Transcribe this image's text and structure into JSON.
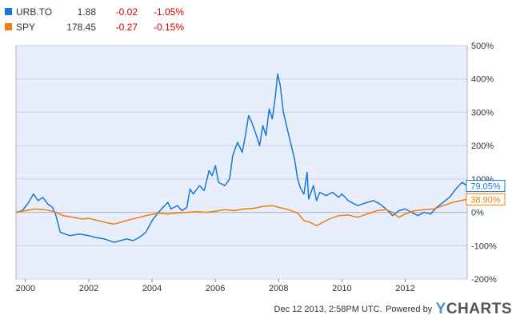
{
  "legend": [
    {
      "symbol": "URB.TO",
      "price": "1.88",
      "change": "-0.02",
      "change_pct": "-1.05%",
      "color": "#1a78d4"
    },
    {
      "symbol": "SPY",
      "price": "178.45",
      "change": "-0.27",
      "change_pct": "-0.15%",
      "color": "#f07e0b"
    }
  ],
  "footer": {
    "timestamp": "Dec 12 2013, 2:58PM UTC.",
    "powered_by": "Powered by",
    "brand_y": "Y",
    "brand_rest": "CHARTS"
  },
  "chart_data": {
    "type": "line",
    "x_ticks": [
      "2000",
      "2002",
      "2004",
      "2006",
      "2008",
      "2010",
      "2012"
    ],
    "y_ticks": [
      "500%",
      "400%",
      "300%",
      "200%",
      "100%",
      "0%",
      "-100%",
      "-200%"
    ],
    "xlim": [
      1999.7,
      2013.96
    ],
    "ylim": [
      -200,
      500
    ],
    "plot_bg": "#e8eefb",
    "series": [
      {
        "name": "URB.TO",
        "color": "#1a78d4",
        "end_label": "79.05%",
        "points": [
          [
            1999.7,
            0
          ],
          [
            1999.9,
            5
          ],
          [
            2000.1,
            30
          ],
          [
            2000.25,
            55
          ],
          [
            2000.4,
            35
          ],
          [
            2000.55,
            45
          ],
          [
            2000.7,
            25
          ],
          [
            2000.85,
            15
          ],
          [
            2000.95,
            -5
          ],
          [
            2001.1,
            -60
          ],
          [
            2001.4,
            -70
          ],
          [
            2001.7,
            -65
          ],
          [
            2002.0,
            -70
          ],
          [
            2002.2,
            -75
          ],
          [
            2002.5,
            -80
          ],
          [
            2002.8,
            -90
          ],
          [
            2003.0,
            -85
          ],
          [
            2003.2,
            -80
          ],
          [
            2003.4,
            -85
          ],
          [
            2003.6,
            -75
          ],
          [
            2003.8,
            -60
          ],
          [
            2004.0,
            -25
          ],
          [
            2004.2,
            0
          ],
          [
            2004.35,
            15
          ],
          [
            2004.5,
            30
          ],
          [
            2004.6,
            10
          ],
          [
            2004.8,
            20
          ],
          [
            2004.95,
            5
          ],
          [
            2005.1,
            15
          ],
          [
            2005.2,
            70
          ],
          [
            2005.3,
            55
          ],
          [
            2005.5,
            80
          ],
          [
            2005.65,
            65
          ],
          [
            2005.8,
            125
          ],
          [
            2005.9,
            110
          ],
          [
            2006.0,
            140
          ],
          [
            2006.1,
            90
          ],
          [
            2006.3,
            80
          ],
          [
            2006.45,
            100
          ],
          [
            2006.55,
            170
          ],
          [
            2006.7,
            210
          ],
          [
            2006.85,
            180
          ],
          [
            2006.95,
            230
          ],
          [
            2007.05,
            290
          ],
          [
            2007.15,
            270
          ],
          [
            2007.3,
            230
          ],
          [
            2007.4,
            200
          ],
          [
            2007.5,
            260
          ],
          [
            2007.6,
            230
          ],
          [
            2007.7,
            310
          ],
          [
            2007.8,
            280
          ],
          [
            2007.9,
            350
          ],
          [
            2007.97,
            415
          ],
          [
            2008.05,
            380
          ],
          [
            2008.15,
            300
          ],
          [
            2008.3,
            240
          ],
          [
            2008.4,
            200
          ],
          [
            2008.5,
            160
          ],
          [
            2008.6,
            100
          ],
          [
            2008.7,
            70
          ],
          [
            2008.8,
            55
          ],
          [
            2008.9,
            120
          ],
          [
            2008.95,
            40
          ],
          [
            2009.1,
            80
          ],
          [
            2009.2,
            35
          ],
          [
            2009.3,
            60
          ],
          [
            2009.5,
            50
          ],
          [
            2009.7,
            60
          ],
          [
            2009.9,
            45
          ],
          [
            2010.0,
            55
          ],
          [
            2010.2,
            35
          ],
          [
            2010.5,
            20
          ],
          [
            2010.8,
            30
          ],
          [
            2011.0,
            35
          ],
          [
            2011.2,
            25
          ],
          [
            2011.4,
            10
          ],
          [
            2011.6,
            -10
          ],
          [
            2011.8,
            5
          ],
          [
            2012.0,
            10
          ],
          [
            2012.2,
            0
          ],
          [
            2012.4,
            -10
          ],
          [
            2012.6,
            0
          ],
          [
            2012.8,
            -5
          ],
          [
            2013.0,
            15
          ],
          [
            2013.2,
            30
          ],
          [
            2013.4,
            45
          ],
          [
            2013.6,
            70
          ],
          [
            2013.8,
            90
          ],
          [
            2013.96,
            79.05
          ]
        ]
      },
      {
        "name": "SPY",
        "color": "#f07e0b",
        "end_label": "38.90%",
        "points": [
          [
            1999.7,
            0
          ],
          [
            2000.0,
            5
          ],
          [
            2000.3,
            10
          ],
          [
            2000.6,
            8
          ],
          [
            2000.9,
            2
          ],
          [
            2001.2,
            -10
          ],
          [
            2001.5,
            -15
          ],
          [
            2001.8,
            -20
          ],
          [
            2002.0,
            -18
          ],
          [
            2002.3,
            -25
          ],
          [
            2002.6,
            -32
          ],
          [
            2002.8,
            -35
          ],
          [
            2003.0,
            -30
          ],
          [
            2003.3,
            -22
          ],
          [
            2003.6,
            -15
          ],
          [
            2003.9,
            -8
          ],
          [
            2004.2,
            -3
          ],
          [
            2004.5,
            -5
          ],
          [
            2004.8,
            -2
          ],
          [
            2005.1,
            0
          ],
          [
            2005.4,
            2
          ],
          [
            2005.7,
            0
          ],
          [
            2006.0,
            3
          ],
          [
            2006.3,
            8
          ],
          [
            2006.6,
            5
          ],
          [
            2006.9,
            10
          ],
          [
            2007.2,
            12
          ],
          [
            2007.5,
            18
          ],
          [
            2007.8,
            20
          ],
          [
            2008.0,
            15
          ],
          [
            2008.3,
            8
          ],
          [
            2008.6,
            -2
          ],
          [
            2008.8,
            -25
          ],
          [
            2009.0,
            -30
          ],
          [
            2009.2,
            -40
          ],
          [
            2009.4,
            -30
          ],
          [
            2009.6,
            -20
          ],
          [
            2009.9,
            -10
          ],
          [
            2010.2,
            -8
          ],
          [
            2010.5,
            -15
          ],
          [
            2010.8,
            -5
          ],
          [
            2011.1,
            5
          ],
          [
            2011.4,
            8
          ],
          [
            2011.6,
            0
          ],
          [
            2011.8,
            -15
          ],
          [
            2012.0,
            -5
          ],
          [
            2012.3,
            5
          ],
          [
            2012.6,
            8
          ],
          [
            2012.9,
            10
          ],
          [
            2013.2,
            20
          ],
          [
            2013.5,
            30
          ],
          [
            2013.8,
            36
          ],
          [
            2013.96,
            38.9
          ]
        ]
      }
    ]
  }
}
